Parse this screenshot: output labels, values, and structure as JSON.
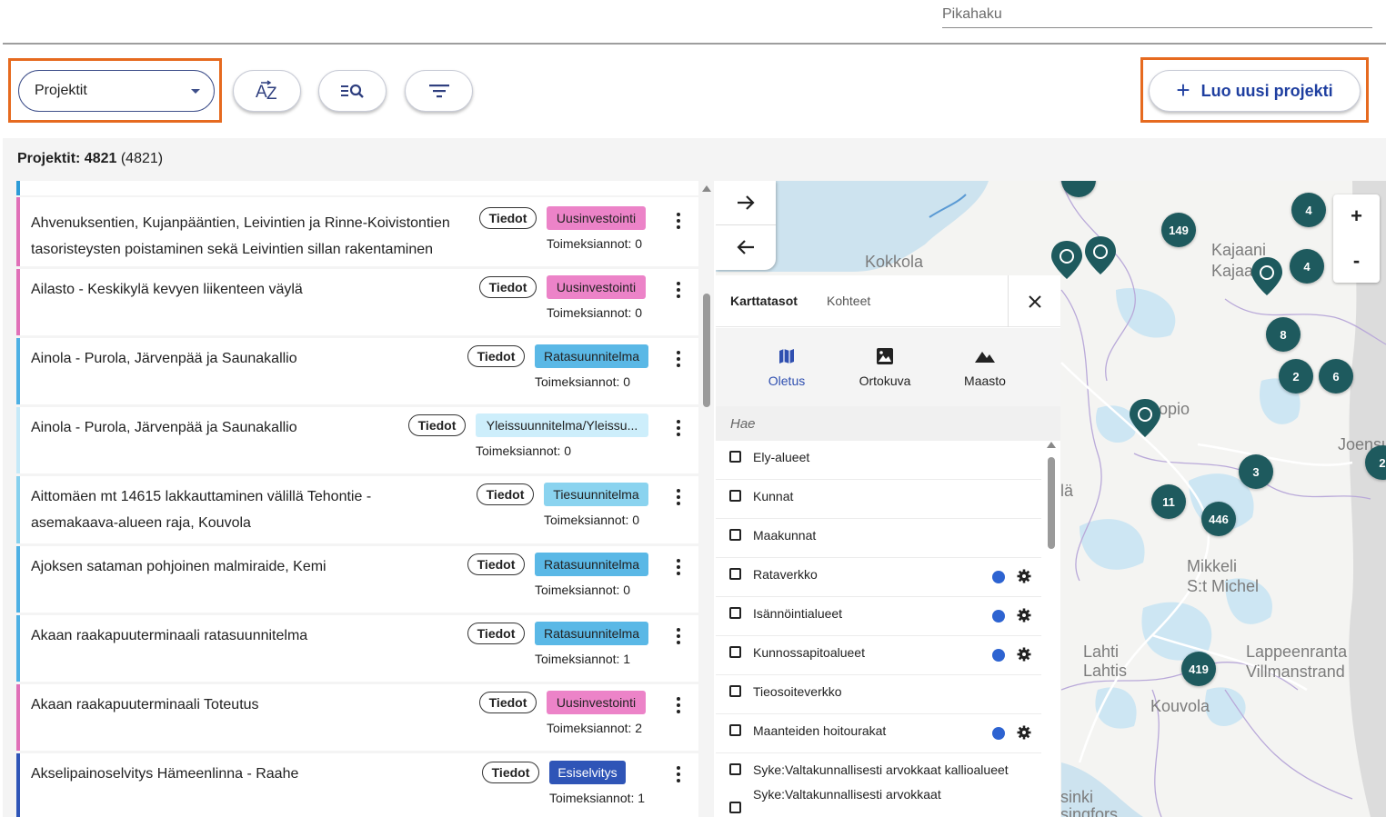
{
  "header": {
    "quick_search_placeholder": "Pikahaku"
  },
  "toolbar": {
    "view_select_value": "Projektit",
    "sort_icon": "sort-az-icon",
    "search_list_icon": "search-list-icon",
    "filter_icon": "filter-icon",
    "new_project_label": "Luo uusi projekti",
    "highlight_color": "#e66a1f"
  },
  "summary": {
    "label": "Projektit: 4821",
    "total": "(4821)"
  },
  "projects": [
    {
      "title_line1": "Ahvenuksentien, Kujanpääntien, Leivintien ja Rinne-Koivistontien",
      "title_line2": "tasoristeysten poistaminen sekä Leivintien sillan rakentaminen",
      "details_label": "Tiedot",
      "type": "Uusinvestointi",
      "type_color": "#ec83c8",
      "stripe_color": "#e070b8",
      "assignments": "Toimeksiannot: 0"
    },
    {
      "title_line1": "Ailasto - Keskikylä kevyen liikenteen väylä",
      "title_line2": "",
      "details_label": "Tiedot",
      "type": "Uusinvestointi",
      "type_color": "#ec83c8",
      "stripe_color": "#e070b8",
      "assignments": "Toimeksiannot: 0"
    },
    {
      "title_line1": "Ainola - Purola, Järvenpää ja Saunakallio",
      "title_line2": "",
      "details_label": "Tiedot",
      "type": "Ratasuunnitelma",
      "type_color": "#5ab8e6",
      "stripe_color": "#4db0e4",
      "assignments": "Toimeksiannot: 0"
    },
    {
      "title_line1": "Ainola - Purola, Järvenpää ja Saunakallio",
      "title_line2": "",
      "details_label": "Tiedot",
      "type": "Yleissuunnitelma/Yleissu...",
      "type_color": "#cdeefb",
      "stripe_color": "#c5e9f8",
      "assignments": "Toimeksiannot: 0"
    },
    {
      "title_line1": "Aittomäen mt 14615 lakkauttaminen välillä Tehontie -",
      "title_line2": "asemakaava-alueen raja, Kouvola",
      "details_label": "Tiedot",
      "type": "Tiesuunnitelma",
      "type_color": "#8ad3ef",
      "stripe_color": "#86d0ee",
      "assignments": "Toimeksiannot: 0"
    },
    {
      "title_line1": "Ajoksen sataman pohjoinen malmiraide, Kemi",
      "title_line2": "",
      "details_label": "Tiedot",
      "type": "Ratasuunnitelma",
      "type_color": "#5ab8e6",
      "stripe_color": "#4db0e4",
      "assignments": "Toimeksiannot: 0"
    },
    {
      "title_line1": "Akaan raakapuuterminaali ratasuunnitelma",
      "title_line2": "",
      "details_label": "Tiedot",
      "type": "Ratasuunnitelma",
      "type_color": "#5ab8e6",
      "stripe_color": "#4db0e4",
      "assignments": "Toimeksiannot: 1"
    },
    {
      "title_line1": "Akaan raakapuuterminaali Toteutus",
      "title_line2": "",
      "details_label": "Tiedot",
      "type": "Uusinvestointi",
      "type_color": "#ec83c8",
      "stripe_color": "#e070b8",
      "assignments": "Toimeksiannot: 2"
    },
    {
      "title_line1": "Akselipainoselvitys Hämeenlinna - Raahe",
      "title_line2": "",
      "details_label": "Tiedot",
      "type": "Esiselvitys",
      "type_color": "#2f55b7",
      "stripe_color": "#2f55b7",
      "assignments": "Toimeksiannot: 1"
    }
  ],
  "map": {
    "places": [
      "Kokkola",
      "Kajaani",
      "Kajaani",
      "Kuopio",
      "Joensuu",
      "Mikkeli",
      "S:t Michel",
      "Lahti",
      "Lahtis",
      "Lappeenranta",
      "Villmanstrand",
      "Kouvola",
      "sinki",
      "singfors",
      "lä"
    ],
    "clusters": [
      "149",
      "4",
      "4",
      "8",
      "2",
      "6",
      "3",
      "11",
      "446",
      "419",
      "2"
    ],
    "zoom_in": "+",
    "zoom_out": "-"
  },
  "layer_panel": {
    "tab_layers": "Karttatasot",
    "tab_features": "Kohteet",
    "modes": [
      {
        "label": "Oletus",
        "icon": "map-icon"
      },
      {
        "label": "Ortokuva",
        "icon": "image-icon"
      },
      {
        "label": "Maasto",
        "icon": "terrain-icon"
      }
    ],
    "search_placeholder": "Hae",
    "layers": [
      {
        "label": "Ely-alueet",
        "has_settings": false
      },
      {
        "label": "Kunnat",
        "has_settings": false
      },
      {
        "label": "Maakunnat",
        "has_settings": false
      },
      {
        "label": "Rataverkko",
        "has_settings": true
      },
      {
        "label": "Isännöintialueet",
        "has_settings": true
      },
      {
        "label": "Kunnossapitoalueet",
        "has_settings": true
      },
      {
        "label": "Tieosoiteverkko",
        "has_settings": false
      },
      {
        "label": "Maanteiden hoitourakat",
        "has_settings": true
      },
      {
        "label": "Syke:Valtakunnallisesti arvokkaat kallioalueet",
        "has_settings": false
      },
      {
        "label": "Syke:Valtakunnallisesti arvokkaat",
        "has_settings": false
      }
    ],
    "layer_dot_color": "#2d63d1"
  }
}
